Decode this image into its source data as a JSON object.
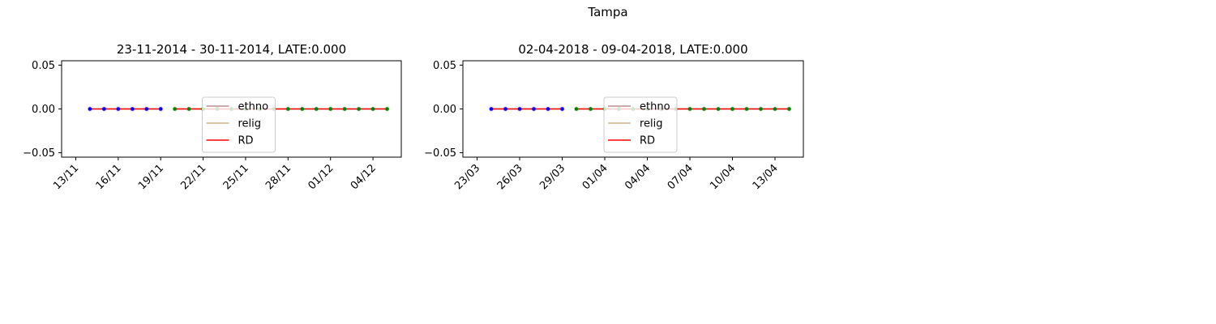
{
  "figure": {
    "suptitle": "Tampa"
  },
  "chart_data": [
    {
      "type": "line",
      "title": "23-11-2014 - 30-11-2014, LATE:0.000",
      "xlabel": "",
      "ylabel": "",
      "x_range": [
        "2014-11-12",
        "2014-12-06"
      ],
      "ylim": [
        -0.055,
        0.055
      ],
      "yticks": [
        0.05,
        0.0,
        -0.05
      ],
      "ytick_labels": [
        "0.05",
        "0.00",
        "−0.05"
      ],
      "xticks": [
        "2014-11-13",
        "2014-11-16",
        "2014-11-19",
        "2014-11-22",
        "2014-11-25",
        "2014-11-28",
        "2014-12-01",
        "2014-12-04"
      ],
      "xtick_labels": [
        "13/11",
        "16/11",
        "19/11",
        "22/11",
        "25/11",
        "28/11",
        "01/12",
        "04/12"
      ],
      "pre_dates": [
        "2014-11-14",
        "2014-11-15",
        "2014-11-16",
        "2014-11-17",
        "2014-11-18",
        "2014-11-19"
      ],
      "post_dates": [
        "2014-11-20",
        "2014-11-21",
        "2014-11-22",
        "2014-11-23",
        "2014-11-24",
        "2014-11-25",
        "2014-11-26",
        "2014-11-27",
        "2014-11-28",
        "2014-11-29",
        "2014-11-30",
        "2014-12-01",
        "2014-12-02",
        "2014-12-03",
        "2014-12-04",
        "2014-12-05"
      ],
      "series": [
        {
          "name": "ethno",
          "color": "#bc8f8f",
          "value": 0.0
        },
        {
          "name": "relig",
          "color": "#d2b48c",
          "value": 0.0
        },
        {
          "name": "RD",
          "color": "#ff0000",
          "value": 0.0
        }
      ],
      "marker_colors": {
        "pre": "#0000ff",
        "post": "#008000"
      },
      "legend": {
        "position": "center",
        "entries": [
          "ethno",
          "relig",
          "RD"
        ]
      },
      "grid": false
    },
    {
      "type": "line",
      "title": "02-04-2018 - 09-04-2018, LATE:0.000",
      "xlabel": "",
      "ylabel": "",
      "x_range": [
        "2018-03-22",
        "2018-04-15"
      ],
      "ylim": [
        -0.055,
        0.055
      ],
      "yticks": [
        0.05,
        0.0,
        -0.05
      ],
      "ytick_labels": [
        "0.05",
        "0.00",
        "−0.05"
      ],
      "xticks": [
        "2018-03-23",
        "2018-03-26",
        "2018-03-29",
        "2018-04-01",
        "2018-04-04",
        "2018-04-07",
        "2018-04-10",
        "2018-04-13"
      ],
      "xtick_labels": [
        "23/03",
        "26/03",
        "29/03",
        "01/04",
        "04/04",
        "07/04",
        "10/04",
        "13/04"
      ],
      "pre_dates": [
        "2018-03-24",
        "2018-03-25",
        "2018-03-26",
        "2018-03-27",
        "2018-03-28",
        "2018-03-29"
      ],
      "post_dates": [
        "2018-03-30",
        "2018-03-31",
        "2018-04-01",
        "2018-04-02",
        "2018-04-03",
        "2018-04-04",
        "2018-04-05",
        "2018-04-06",
        "2018-04-07",
        "2018-04-08",
        "2018-04-09",
        "2018-04-10",
        "2018-04-11",
        "2018-04-12",
        "2018-04-13",
        "2018-04-14"
      ],
      "series": [
        {
          "name": "ethno",
          "color": "#bc8f8f",
          "value": 0.0
        },
        {
          "name": "relig",
          "color": "#d2b48c",
          "value": 0.0
        },
        {
          "name": "RD",
          "color": "#ff0000",
          "value": 0.0
        }
      ],
      "marker_colors": {
        "pre": "#0000ff",
        "post": "#008000"
      },
      "legend": {
        "position": "center",
        "entries": [
          "ethno",
          "relig",
          "RD"
        ]
      },
      "grid": false
    }
  ]
}
